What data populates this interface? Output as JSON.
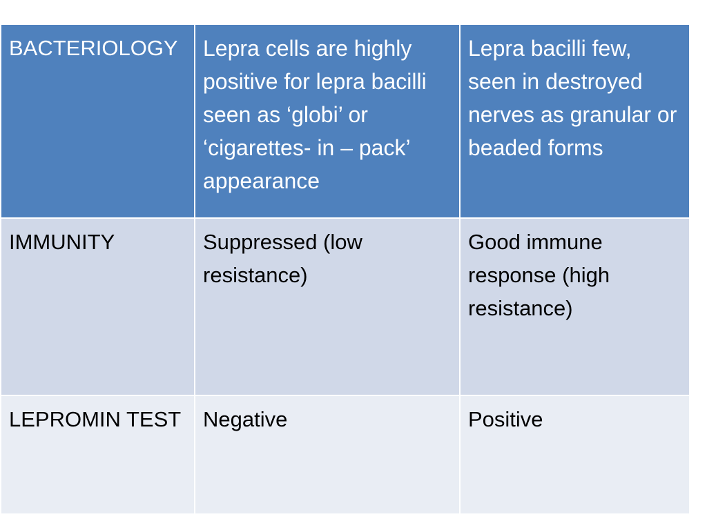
{
  "table": {
    "rows": [
      {
        "label": "BACTERIOLOGY",
        "col1": "Lepra cells are highly positive for lepra bacilli seen as ‘globi’ or ‘cigarettes- in – pack’ appearance",
        "col2": "Lepra bacilli few, seen in destroyed nerves as granular or beaded forms"
      },
      {
        "label": "IMMUNITY",
        "col1": "Suppressed (low resistance)",
        "col2": "Good immune response (high resistance)"
      },
      {
        "label": "LEPROMIN TEST",
        "col1": "Negative",
        "col2": "Positive"
      }
    ]
  },
  "colors": {
    "header_row": "#4f81bd",
    "band_dark": "#d0d8e8",
    "band_light": "#e9edf4",
    "border": "#ffffff"
  }
}
